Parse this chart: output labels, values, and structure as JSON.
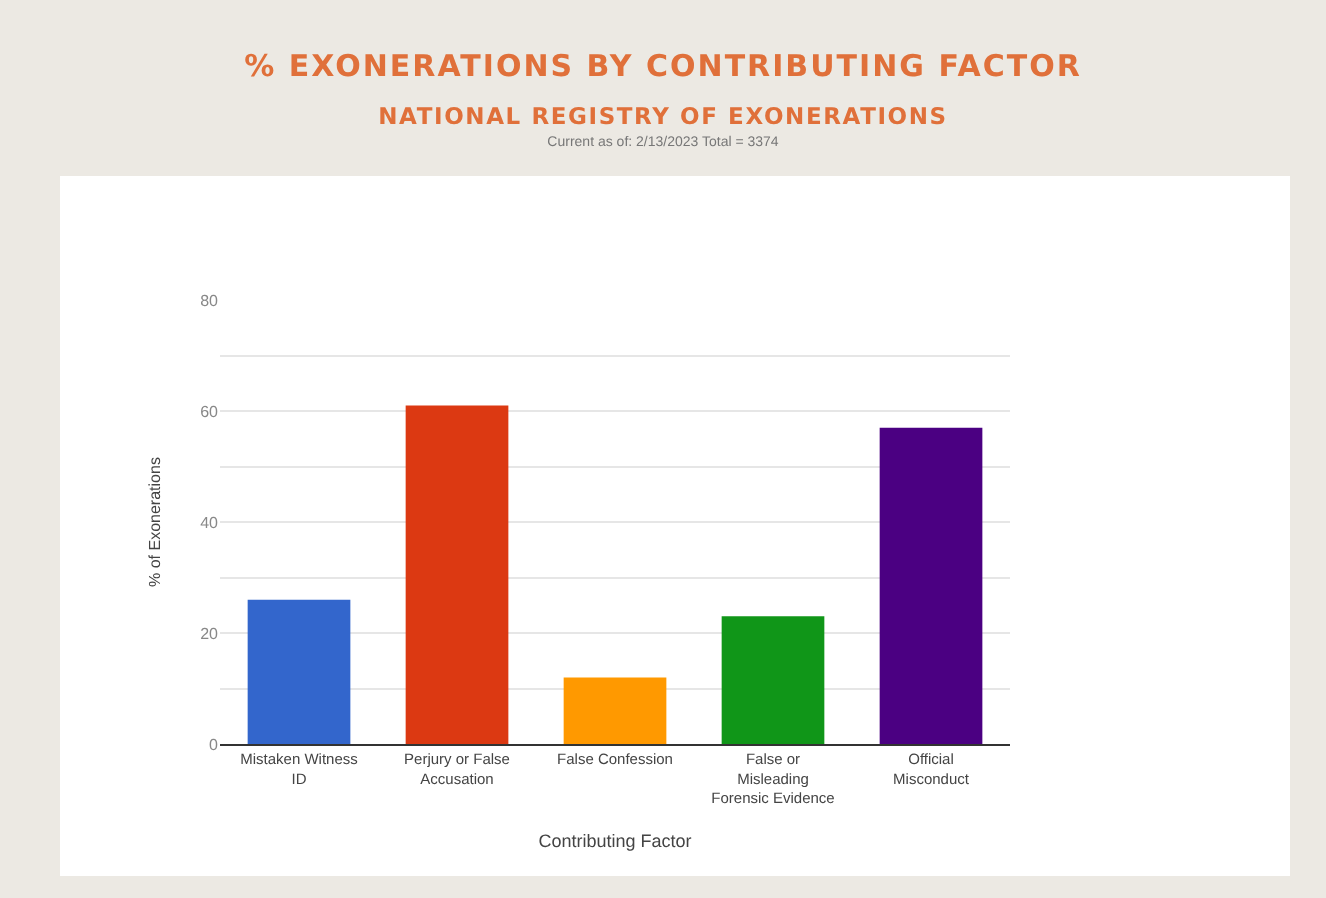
{
  "chart_data": {
    "type": "bar",
    "title": "% EXONERATIONS BY CONTRIBUTING FACTOR",
    "subtitle": "NATIONAL REGISTRY OF EXONERATIONS",
    "annotations": [
      "Current as of: 2/13/2023 Total = 3374"
    ],
    "xlabel": "Contributing Factor",
    "ylabel": "% of Exonerations",
    "categories": [
      "Mistaken Witness ID",
      "Perjury or False Accusation",
      "False Confession",
      "False or Misleading Forensic Evidence",
      "Official Misconduct"
    ],
    "values": [
      26,
      61,
      12,
      23,
      57
    ],
    "colors": [
      "#3366cc",
      "#dc3912",
      "#ff9900",
      "#109618",
      "#4b0082"
    ],
    "ylim": [
      0,
      80
    ],
    "yticks": [
      0,
      {
        "value": 10,
        "label": null
      },
      20,
      {
        "value": 30,
        "label": null
      },
      40,
      {
        "value": 50,
        "label": null
      },
      60,
      {
        "value": 70,
        "label": null
      },
      80
    ],
    "grid": "y",
    "legend": false
  }
}
